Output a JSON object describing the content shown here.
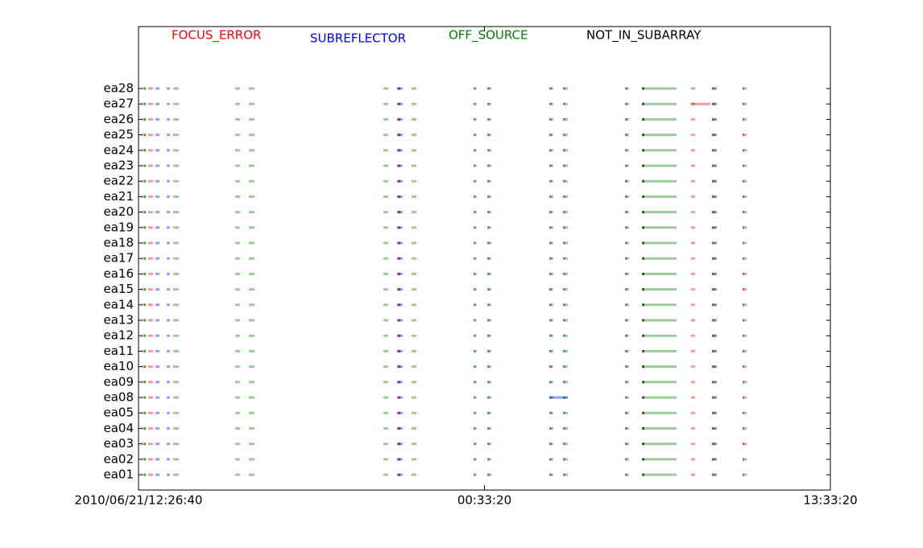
{
  "chart_data": {
    "type": "flag-timeline",
    "categories": [
      "ea01",
      "ea02",
      "ea03",
      "ea04",
      "ea05",
      "ea08",
      "ea09",
      "ea10",
      "ea11",
      "ea12",
      "ea13",
      "ea14",
      "ea15",
      "ea16",
      "ea17",
      "ea18",
      "ea19",
      "ea20",
      "ea21",
      "ea22",
      "ea23",
      "ea24",
      "ea25",
      "ea26",
      "ea27",
      "ea28"
    ],
    "xlim": [
      12.444,
      36.667
    ],
    "xticks": [
      {
        "value": 12.444,
        "label": "2010/06/21/12:26:40"
      },
      {
        "value": 24.556,
        "label": "00:33:20"
      },
      {
        "value": 36.667,
        "label": "13:33:20"
      }
    ],
    "series": [
      {
        "name": "FOCUS_ERROR",
        "color": "#ff0000",
        "flags": [
          {
            "start": 12.782,
            "end": 12.952
          },
          {
            "start": 21.496,
            "end": 21.609
          },
          {
            "start": 30.068,
            "end": 30.153
          },
          {
            "start": 31.788,
            "end": 31.929
          },
          {
            "start": 32.521,
            "end": 32.69
          },
          {
            "start": 33.593,
            "end": 33.734
          },
          {
            "start": 31.788,
            "end": 32.464,
            "antenna": "ea27"
          }
        ]
      },
      {
        "name": "SUBREFLECTOR",
        "color": "#0000ff",
        "flags": [
          {
            "start": 13.036,
            "end": 13.177
          },
          {
            "start": 13.431,
            "end": 13.544
          },
          {
            "start": 21.496,
            "end": 21.693
          },
          {
            "start": 24.175,
            "end": 24.231
          },
          {
            "start": 24.654,
            "end": 24.739
          },
          {
            "start": 26.825,
            "end": 26.91
          },
          {
            "start": 27.304,
            "end": 27.389
          },
          {
            "start": 29.475,
            "end": 29.56
          },
          {
            "start": 30.068,
            "end": 30.153
          },
          {
            "start": 32.521,
            "end": 32.606
          },
          {
            "start": 33.593,
            "end": 33.649
          },
          {
            "start": 26.825,
            "end": 27.474,
            "antenna": "ea08"
          }
        ]
      },
      {
        "name": "OFF_SOURCE",
        "color": "#008000",
        "flags": [
          {
            "start": 12.557,
            "end": 12.698
          },
          {
            "start": 13.657,
            "end": 13.854
          },
          {
            "start": 15.828,
            "end": 15.997
          },
          {
            "start": 16.307,
            "end": 16.505
          },
          {
            "start": 21.016,
            "end": 21.186
          },
          {
            "start": 22.003,
            "end": 22.173
          },
          {
            "start": 24.175,
            "end": 24.287
          },
          {
            "start": 24.654,
            "end": 24.795
          },
          {
            "start": 26.825,
            "end": 26.966
          },
          {
            "start": 27.304,
            "end": 27.474
          },
          {
            "start": 29.475,
            "end": 29.616
          },
          {
            "start": 30.068,
            "end": 31.28
          },
          {
            "start": 32.521,
            "end": 32.69
          }
        ]
      },
      {
        "name": "NOT_IN_SUBARRAY",
        "color": "#000000",
        "flags": [
          {
            "start": 12.641,
            "end": 12.698
          },
          {
            "start": 21.552,
            "end": 21.609
          },
          {
            "start": 30.097,
            "end": 30.153
          }
        ]
      }
    ]
  }
}
